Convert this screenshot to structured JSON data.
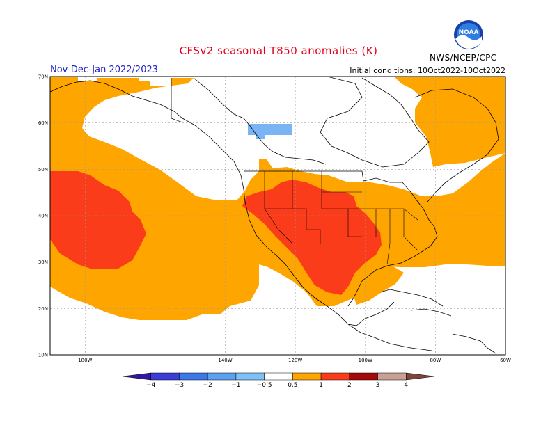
{
  "header": {
    "title": "CFSv2 seasonal T850 anomalies (K)",
    "period": "Nov-Dec-Jan 2022/2023",
    "initial_conditions": "Initial conditions: 10Oct2022-10Oct2022",
    "agency": "NWS/NCEP/CPC",
    "logo_text": "NOAA"
  },
  "map": {
    "lon_range": [
      -190,
      -60
    ],
    "lat_range": [
      10,
      70
    ],
    "lon_ticks": [
      {
        "value": -180,
        "label": "180W"
      },
      {
        "value": -140,
        "label": "140W"
      },
      {
        "value": -120,
        "label": "120W"
      },
      {
        "value": -100,
        "label": "100W"
      },
      {
        "value": -80,
        "label": "80W"
      },
      {
        "value": -60,
        "label": "60W"
      }
    ],
    "lat_ticks": [
      {
        "value": 70,
        "label": "70N"
      },
      {
        "value": 60,
        "label": "60N"
      },
      {
        "value": 50,
        "label": "50N"
      },
      {
        "value": 40,
        "label": "40N"
      },
      {
        "value": 30,
        "label": "30N"
      },
      {
        "value": 20,
        "label": "20N"
      },
      {
        "value": 10,
        "label": "10N"
      }
    ],
    "grid": true,
    "colors": {
      "anom_05_1": "#ffa500",
      "anom_1_2": "#fa3c1a",
      "anom_neg_05_1": "#7ab4f5",
      "coast": "#000000"
    }
  },
  "colorbar": {
    "labels": [
      "−4",
      "−3",
      "−2",
      "−1",
      "−0.5",
      "0.5",
      "1",
      "2",
      "3",
      "4"
    ],
    "colors": [
      "#3318a0",
      "#3c3cd8",
      "#3c78e8",
      "#5ca0f0",
      "#7ec0f8",
      "#ffffff",
      "#ffa500",
      "#fa3c1a",
      "#a50a0a",
      "#c8a096",
      "#7d463c"
    ]
  }
}
